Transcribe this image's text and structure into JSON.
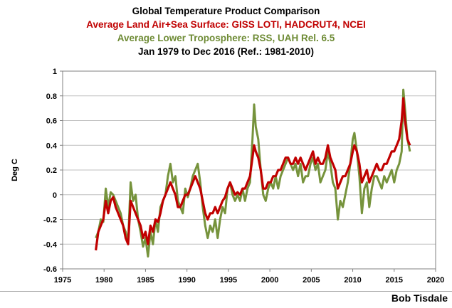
{
  "chart_data": {
    "type": "line",
    "title": "Global Temperature Product Comparison",
    "subtitle_lines": [
      {
        "text": "Average Land Air+Sea Surface: GISS LOTI, HADCRUT4, NCEI",
        "color": "#c00000"
      },
      {
        "text": "Average Lower Troposphere: RSS, UAH Rel. 6.5",
        "color": "#6e8b35"
      },
      {
        "text": "Jan 1979 to Dec 2016 (Ref.: 1981-2010)",
        "color": "#000000"
      }
    ],
    "xlabel": "",
    "ylabel": "Deg C",
    "xlim": [
      1975,
      2020
    ],
    "ylim": [
      -0.6,
      1.0
    ],
    "xticks": [
      1975,
      1980,
      1985,
      1990,
      1995,
      2000,
      2005,
      2010,
      2015,
      2020
    ],
    "yticks": [
      -0.6,
      -0.4,
      -0.2,
      0,
      0.2,
      0.4,
      0.6,
      0.8,
      1
    ],
    "ytick_labels": [
      "-0.6",
      "-0.4",
      "-0.2",
      "0",
      "0.2",
      "0.4",
      "0.6",
      "0.8",
      "1"
    ],
    "grid": "horizontal",
    "legend": "none",
    "series": [
      {
        "color": "#76933c",
        "x": [
          1979.0,
          1979.3,
          1979.6,
          1979.9,
          1980.2,
          1980.5,
          1980.8,
          1981.1,
          1981.4,
          1981.7,
          1982.0,
          1982.3,
          1982.6,
          1982.9,
          1983.2,
          1983.5,
          1983.8,
          1984.1,
          1984.4,
          1984.7,
          1985.0,
          1985.3,
          1985.6,
          1985.9,
          1986.2,
          1986.5,
          1986.8,
          1987.1,
          1987.4,
          1987.7,
          1988.0,
          1988.3,
          1988.6,
          1988.9,
          1989.2,
          1989.5,
          1989.8,
          1990.1,
          1990.4,
          1990.7,
          1991.0,
          1991.3,
          1991.6,
          1991.9,
          1992.2,
          1992.5,
          1992.8,
          1993.1,
          1993.4,
          1993.7,
          1994.0,
          1994.3,
          1994.6,
          1994.9,
          1995.2,
          1995.5,
          1995.8,
          1996.1,
          1996.4,
          1996.7,
          1997.0,
          1997.3,
          1997.6,
          1997.9,
          1998.1,
          1998.3,
          1998.6,
          1998.9,
          1999.2,
          1999.5,
          1999.8,
          2000.1,
          2000.4,
          2000.7,
          2001.0,
          2001.3,
          2001.6,
          2001.9,
          2002.2,
          2002.5,
          2002.8,
          2003.1,
          2003.4,
          2003.7,
          2004.0,
          2004.3,
          2004.6,
          2004.9,
          2005.2,
          2005.5,
          2005.8,
          2006.1,
          2006.4,
          2006.7,
          2007.0,
          2007.3,
          2007.6,
          2007.9,
          2008.2,
          2008.5,
          2008.8,
          2009.1,
          2009.4,
          2009.7,
          2010.0,
          2010.2,
          2010.5,
          2010.8,
          2011.1,
          2011.4,
          2011.7,
          2012.0,
          2012.3,
          2012.6,
          2012.9,
          2013.2,
          2013.5,
          2013.8,
          2014.1,
          2014.4,
          2014.7,
          2015.0,
          2015.3,
          2015.6,
          2015.9,
          2016.1,
          2016.3,
          2016.6,
          2016.9
        ],
        "y": [
          -0.35,
          -0.3,
          -0.2,
          -0.22,
          0.05,
          -0.1,
          0.02,
          0.0,
          -0.05,
          -0.1,
          -0.15,
          -0.25,
          -0.3,
          -0.38,
          0.1,
          -0.05,
          0.0,
          -0.2,
          -0.3,
          -0.42,
          -0.35,
          -0.5,
          -0.3,
          -0.4,
          -0.2,
          -0.3,
          -0.1,
          -0.05,
          0.0,
          0.15,
          0.25,
          0.1,
          0.15,
          -0.05,
          -0.1,
          -0.15,
          0.05,
          -0.02,
          0.05,
          0.15,
          0.2,
          0.25,
          0.1,
          -0.1,
          -0.25,
          -0.35,
          -0.25,
          -0.3,
          -0.2,
          -0.35,
          -0.2,
          -0.1,
          -0.15,
          0.05,
          0.1,
          0.0,
          -0.05,
          0.0,
          -0.05,
          0.05,
          -0.05,
          0.05,
          0.1,
          0.45,
          0.73,
          0.55,
          0.45,
          0.2,
          0.0,
          -0.05,
          0.05,
          0.1,
          0.05,
          0.15,
          0.05,
          0.15,
          0.2,
          0.25,
          0.3,
          0.25,
          0.2,
          0.25,
          0.15,
          0.25,
          0.1,
          0.15,
          0.15,
          0.25,
          0.3,
          0.2,
          0.25,
          0.1,
          0.15,
          0.2,
          0.35,
          0.25,
          0.1,
          0.05,
          -0.2,
          -0.05,
          -0.1,
          0.0,
          0.1,
          0.25,
          0.45,
          0.5,
          0.35,
          0.15,
          -0.15,
          0.05,
          0.1,
          -0.1,
          0.05,
          0.15,
          0.15,
          0.1,
          0.05,
          0.15,
          0.1,
          0.15,
          0.2,
          0.1,
          0.2,
          0.25,
          0.35,
          0.85,
          0.7,
          0.45,
          0.35
        ]
      },
      {
        "color": "#c00000",
        "x": [
          1979.0,
          1979.3,
          1979.6,
          1979.9,
          1980.2,
          1980.5,
          1980.8,
          1981.1,
          1981.4,
          1981.7,
          1982.0,
          1982.3,
          1982.6,
          1982.9,
          1983.2,
          1983.5,
          1983.8,
          1984.1,
          1984.4,
          1984.7,
          1985.0,
          1985.3,
          1985.6,
          1985.9,
          1986.2,
          1986.5,
          1986.8,
          1987.1,
          1987.4,
          1987.7,
          1988.0,
          1988.3,
          1988.6,
          1988.9,
          1989.2,
          1989.5,
          1989.8,
          1990.1,
          1990.4,
          1990.7,
          1991.0,
          1991.3,
          1991.6,
          1991.9,
          1992.2,
          1992.5,
          1992.8,
          1993.1,
          1993.4,
          1993.7,
          1994.0,
          1994.3,
          1994.6,
          1994.9,
          1995.2,
          1995.5,
          1995.8,
          1996.1,
          1996.4,
          1996.7,
          1997.0,
          1997.3,
          1997.6,
          1997.9,
          1998.1,
          1998.3,
          1998.6,
          1998.9,
          1999.2,
          1999.5,
          1999.8,
          2000.1,
          2000.4,
          2000.7,
          2001.0,
          2001.3,
          2001.6,
          2001.9,
          2002.2,
          2002.5,
          2002.8,
          2003.1,
          2003.4,
          2003.7,
          2004.0,
          2004.3,
          2004.6,
          2004.9,
          2005.2,
          2005.5,
          2005.8,
          2006.1,
          2006.4,
          2006.7,
          2007.0,
          2007.3,
          2007.6,
          2007.9,
          2008.2,
          2008.5,
          2008.8,
          2009.1,
          2009.4,
          2009.7,
          2010.0,
          2010.2,
          2010.5,
          2010.8,
          2011.1,
          2011.4,
          2011.7,
          2012.0,
          2012.3,
          2012.6,
          2012.9,
          2013.2,
          2013.5,
          2013.8,
          2014.1,
          2014.4,
          2014.7,
          2015.0,
          2015.3,
          2015.6,
          2015.9,
          2016.1,
          2016.3,
          2016.6,
          2016.9
        ],
        "y": [
          -0.45,
          -0.3,
          -0.25,
          -0.2,
          -0.05,
          -0.15,
          -0.05,
          -0.02,
          -0.1,
          -0.15,
          -0.2,
          -0.25,
          -0.35,
          -0.4,
          -0.05,
          -0.1,
          -0.15,
          -0.2,
          -0.25,
          -0.35,
          -0.3,
          -0.4,
          -0.25,
          -0.3,
          -0.2,
          -0.22,
          -0.15,
          -0.05,
          0.0,
          0.05,
          0.1,
          0.05,
          0.0,
          -0.1,
          -0.1,
          -0.05,
          0.0,
          0.0,
          0.05,
          0.1,
          0.15,
          0.1,
          0.05,
          -0.05,
          -0.15,
          -0.2,
          -0.15,
          -0.15,
          -0.1,
          -0.15,
          -0.1,
          -0.05,
          -0.02,
          0.05,
          0.1,
          0.05,
          0.0,
          0.02,
          0.0,
          0.05,
          0.05,
          0.1,
          0.15,
          0.3,
          0.4,
          0.35,
          0.3,
          0.2,
          0.05,
          0.05,
          0.1,
          0.1,
          0.15,
          0.15,
          0.2,
          0.2,
          0.25,
          0.3,
          0.3,
          0.25,
          0.25,
          0.3,
          0.25,
          0.3,
          0.25,
          0.2,
          0.25,
          0.3,
          0.35,
          0.25,
          0.3,
          0.25,
          0.25,
          0.3,
          0.4,
          0.3,
          0.25,
          0.2,
          0.05,
          0.1,
          0.15,
          0.15,
          0.2,
          0.25,
          0.35,
          0.4,
          0.35,
          0.25,
          0.1,
          0.15,
          0.2,
          0.1,
          0.15,
          0.2,
          0.25,
          0.2,
          0.2,
          0.25,
          0.25,
          0.3,
          0.35,
          0.35,
          0.4,
          0.45,
          0.6,
          0.78,
          0.6,
          0.45,
          0.4
        ]
      }
    ]
  },
  "credit": "Bob Tisdale"
}
